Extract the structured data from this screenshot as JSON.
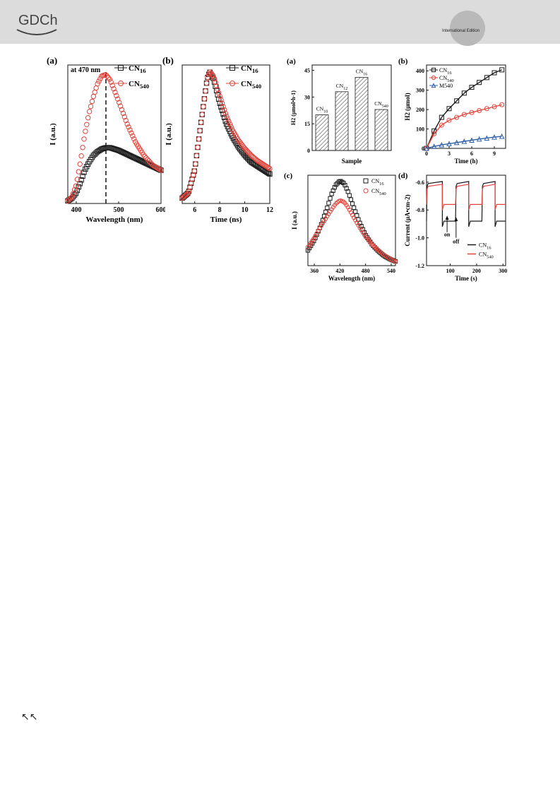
{
  "header": {
    "logo_text": "GDCh",
    "edition": "International Edition"
  },
  "footer": {
    "icon": "north-west-arrows-icon",
    "glyph": "↖↖"
  },
  "colors": {
    "black": "#1a1a1a",
    "red": "#e0453c",
    "blue": "#2f5ea8",
    "header_bg": "#dcdcdc"
  },
  "chart_data": [
    {
      "id": "left-a",
      "type": "scatter",
      "panel_label": "(a)",
      "xlabel": "Wavelength (nm)",
      "ylabel": "I (a.u.)",
      "xlim": [
        380,
        600
      ],
      "xticks": [
        "400",
        "500",
        "600"
      ],
      "annotation": "at 470 nm",
      "vline_x": 470,
      "legend_placement": "top-right",
      "series": [
        {
          "name": "CN16",
          "marker": "square",
          "color": "#1a1a1a",
          "x": [
            380,
            390,
            400,
            410,
            420,
            430,
            440,
            450,
            460,
            470,
            480,
            490,
            500,
            520,
            540,
            560,
            580,
            600
          ],
          "y": [
            0.02,
            0.04,
            0.08,
            0.16,
            0.25,
            0.31,
            0.36,
            0.39,
            0.41,
            0.42,
            0.42,
            0.41,
            0.4,
            0.37,
            0.34,
            0.31,
            0.28,
            0.25
          ]
        },
        {
          "name": "CN540",
          "marker": "circle",
          "color": "#e0453c",
          "x": [
            380,
            390,
            400,
            410,
            420,
            430,
            440,
            450,
            460,
            470,
            480,
            490,
            500,
            520,
            540,
            560,
            580,
            600
          ],
          "y": [
            0.02,
            0.05,
            0.14,
            0.32,
            0.52,
            0.68,
            0.8,
            0.9,
            0.96,
            0.97,
            0.93,
            0.85,
            0.77,
            0.6,
            0.46,
            0.36,
            0.29,
            0.25
          ]
        }
      ]
    },
    {
      "id": "left-b",
      "type": "scatter",
      "panel_label": "(b)",
      "xlabel": "Time (ns)",
      "ylabel": "I (a.u.)",
      "xlim": [
        5,
        12
      ],
      "xticks": [
        "6",
        "8",
        "10",
        "12"
      ],
      "legend_placement": "top-right",
      "series": [
        {
          "name": "CN16",
          "marker": "square",
          "color": "#1a1a1a",
          "x": [
            5,
            5.5,
            6,
            6.5,
            7,
            7.2,
            7.5,
            8,
            8.5,
            9,
            9.5,
            10,
            10.5,
            11,
            11.5,
            12
          ],
          "y": [
            0.04,
            0.08,
            0.25,
            0.6,
            0.93,
            0.98,
            0.93,
            0.75,
            0.6,
            0.5,
            0.42,
            0.36,
            0.31,
            0.28,
            0.25,
            0.22
          ]
        },
        {
          "name": "CN540",
          "marker": "circle",
          "color": "#e0453c",
          "x": [
            5,
            5.5,
            6,
            6.5,
            7,
            7.2,
            7.5,
            8,
            8.5,
            9,
            9.5,
            10,
            10.5,
            11,
            11.5,
            12
          ],
          "y": [
            0.04,
            0.08,
            0.25,
            0.6,
            0.93,
            0.98,
            0.95,
            0.8,
            0.66,
            0.55,
            0.47,
            0.41,
            0.36,
            0.32,
            0.29,
            0.26
          ]
        }
      ]
    },
    {
      "id": "right-a",
      "type": "bar",
      "panel_label": "(a)",
      "xlabel": "Sample",
      "ylabel": "H2 (μmol•h-1)",
      "ylim": [
        0,
        48
      ],
      "yticks": [
        "0",
        "15",
        "30",
        "45"
      ],
      "categories": [
        "CN10",
        "CN12",
        "CN16",
        "CN540"
      ],
      "values": [
        20,
        33,
        41,
        23
      ]
    },
    {
      "id": "right-b",
      "type": "line",
      "panel_label": "(b)",
      "xlabel": "Time (h)",
      "ylabel": "H2 (μmol)",
      "xlim": [
        0,
        10.5
      ],
      "ylim": [
        0,
        430
      ],
      "xticks": [
        "0",
        "3",
        "6",
        "9"
      ],
      "yticks": [
        "0",
        "100",
        "200",
        "300",
        "400"
      ],
      "legend_placement": "top-left",
      "series": [
        {
          "name": "CN16",
          "marker": "square",
          "color": "#1a1a1a",
          "x": [
            0,
            1,
            2,
            3,
            4,
            5,
            6,
            7,
            8,
            9,
            10
          ],
          "y": [
            0,
            90,
            160,
            205,
            245,
            285,
            315,
            340,
            365,
            390,
            405
          ]
        },
        {
          "name": "CN540",
          "marker": "circle",
          "color": "#e0453c",
          "x": [
            0,
            1,
            2,
            3,
            4,
            5,
            6,
            7,
            8,
            9,
            10
          ],
          "y": [
            0,
            75,
            120,
            145,
            160,
            175,
            185,
            195,
            205,
            215,
            225
          ]
        },
        {
          "name": "M540",
          "marker": "triangle",
          "color": "#2f5ea8",
          "x": [
            0,
            1,
            2,
            3,
            4,
            5,
            6,
            7,
            8,
            9,
            10
          ],
          "y": [
            0,
            10,
            18,
            24,
            30,
            36,
            42,
            48,
            53,
            58,
            62
          ]
        }
      ]
    },
    {
      "id": "right-c",
      "type": "scatter",
      "panel_label": "(c)",
      "xlabel": "Wavelength (nm)",
      "ylabel": "I (a.u.)",
      "xlim": [
        345,
        550
      ],
      "xticks": [
        "360",
        "420",
        "480",
        "540"
      ],
      "legend_placement": "top-right",
      "series": [
        {
          "name": "CN16",
          "marker": "square",
          "color": "#1a1a1a",
          "x": [
            345,
            360,
            375,
            390,
            400,
            410,
            420,
            430,
            440,
            450,
            465,
            480,
            495,
            510,
            525,
            540,
            550
          ],
          "y": [
            0.18,
            0.3,
            0.47,
            0.68,
            0.84,
            0.95,
            1.0,
            0.97,
            0.86,
            0.72,
            0.52,
            0.36,
            0.25,
            0.17,
            0.11,
            0.07,
            0.05
          ]
        },
        {
          "name": "CN540",
          "marker": "circle",
          "color": "#e0453c",
          "x": [
            345,
            360,
            375,
            390,
            400,
            410,
            420,
            430,
            440,
            450,
            465,
            480,
            495,
            510,
            525,
            540,
            550
          ],
          "y": [
            0.22,
            0.33,
            0.46,
            0.58,
            0.66,
            0.73,
            0.77,
            0.75,
            0.68,
            0.59,
            0.46,
            0.34,
            0.25,
            0.18,
            0.12,
            0.07,
            0.05
          ]
        }
      ]
    },
    {
      "id": "right-d",
      "type": "line",
      "panel_label": "(d)",
      "xlabel": "Time (s)",
      "ylabel": "Current (μA•cm-2)",
      "xlim": [
        10,
        310
      ],
      "ylim": [
        -1.2,
        -0.55
      ],
      "xticks": [
        "100",
        "200",
        "300"
      ],
      "yticks": [
        "-0.6",
        "-0.8",
        "-1.0",
        "-1.2"
      ],
      "annotations": [
        "on",
        "off"
      ],
      "legend_placement": "bottom-right",
      "series": [
        {
          "name": "CN16",
          "color": "#1a1a1a",
          "on_level": -0.61,
          "off_level": -0.88
        },
        {
          "name": "CN540",
          "color": "#e0453c",
          "on_level": -0.63,
          "off_level": -0.76
        }
      ],
      "switch_times_s": [
        70,
        120,
        170,
        220,
        270
      ]
    }
  ]
}
